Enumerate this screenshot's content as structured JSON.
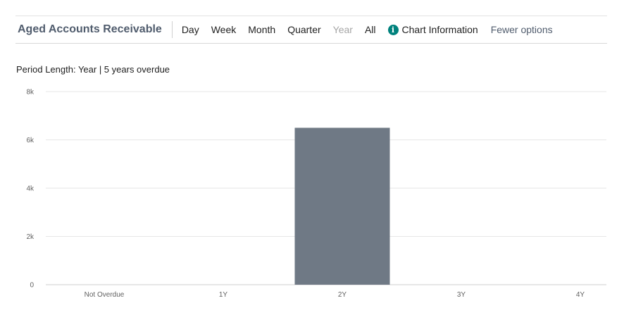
{
  "header": {
    "title": "Aged Accounts Receivable",
    "periods": [
      {
        "label": "Day",
        "enabled": true
      },
      {
        "label": "Week",
        "enabled": true
      },
      {
        "label": "Month",
        "enabled": true
      },
      {
        "label": "Quarter",
        "enabled": true
      },
      {
        "label": "Year",
        "enabled": false
      },
      {
        "label": "All",
        "enabled": true
      }
    ],
    "chart_info_label": "Chart Information",
    "chart_info_icon": "info-icon",
    "fewer_options_label": "Fewer options"
  },
  "period_text": "Period Length: Year | 5 years overdue",
  "colors": {
    "bar": "#6f7985",
    "accent": "#00827d",
    "title": "#505c6d",
    "grid": "#e6e6e6"
  },
  "chart_data": {
    "type": "bar",
    "title": "",
    "xlabel": "",
    "ylabel": "",
    "categories": [
      "Not Overdue",
      "1Y",
      "2Y",
      "3Y",
      "4Y"
    ],
    "values": [
      0,
      0,
      6500,
      0,
      0
    ],
    "ylim": [
      0,
      8000
    ],
    "yticks": [
      0,
      2000,
      4000,
      6000,
      8000
    ],
    "ytick_labels": [
      "0",
      "2k",
      "4k",
      "6k",
      "8k"
    ],
    "grid": true,
    "legend": "none"
  }
}
